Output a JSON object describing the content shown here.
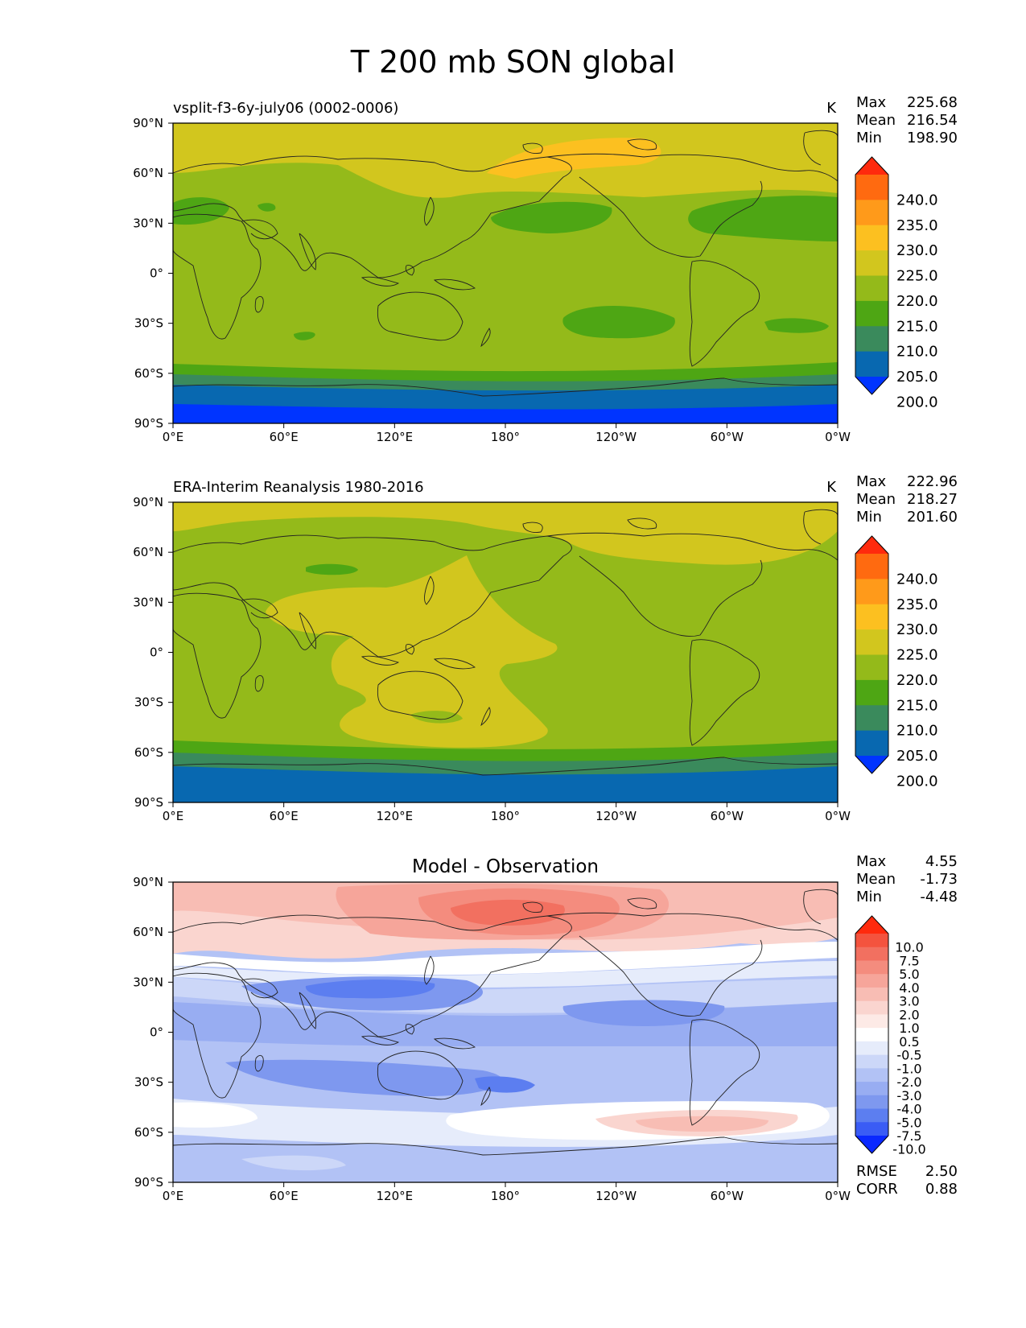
{
  "title": "T 200 mb SON global",
  "x_ticks": [
    "0°E",
    "60°E",
    "120°E",
    "180°",
    "120°W",
    "60°W",
    "0°W"
  ],
  "y_ticks": [
    "90°N",
    "60°N",
    "30°N",
    "0°",
    "30°S",
    "60°S",
    "90°S"
  ],
  "panels": [
    {
      "id": "model",
      "left_title": "vsplit-f3-6y-july06 (0002-0006)",
      "center_title": "",
      "units": "K",
      "stats": [
        {
          "label": "Max",
          "value": "225.68"
        },
        {
          "label": "Mean",
          "value": "216.54"
        },
        {
          "label": "Min",
          "value": "198.90"
        }
      ],
      "colorbar": {
        "labels": [
          "240.0",
          "235.0",
          "230.0",
          "225.0",
          "220.0",
          "215.0",
          "210.0",
          "205.0",
          "200.0"
        ],
        "colors": [
          "#ff2a0d",
          "#ff6a10",
          "#ff9a1a",
          "#fcc020",
          "#d2c61e",
          "#94ba1a",
          "#4ea614",
          "#3a8a5c",
          "#0868b0",
          "#0034ff"
        ]
      },
      "extra_stats": []
    },
    {
      "id": "obs",
      "left_title": "ERA-Interim Reanalysis 1980-2016",
      "center_title": "",
      "units": "K",
      "stats": [
        {
          "label": "Max",
          "value": "222.96"
        },
        {
          "label": "Mean",
          "value": "218.27"
        },
        {
          "label": "Min",
          "value": "201.60"
        }
      ],
      "colorbar": {
        "labels": [
          "240.0",
          "235.0",
          "230.0",
          "225.0",
          "220.0",
          "215.0",
          "210.0",
          "205.0",
          "200.0"
        ],
        "colors": [
          "#ff2a0d",
          "#ff6a10",
          "#ff9a1a",
          "#fcc020",
          "#d2c61e",
          "#94ba1a",
          "#4ea614",
          "#3a8a5c",
          "#0868b0",
          "#0034ff"
        ]
      },
      "extra_stats": []
    },
    {
      "id": "diff",
      "left_title": "",
      "center_title": "Model - Observation",
      "units": "",
      "stats": [
        {
          "label": "Max",
          "value": "4.55"
        },
        {
          "label": "Mean",
          "value": "-1.73"
        },
        {
          "label": "Min",
          "value": "-4.48"
        }
      ],
      "colorbar": {
        "labels": [
          "10.0",
          "7.5",
          "5.0",
          "4.0",
          "3.0",
          "2.0",
          "1.0",
          "0.5",
          "-0.5",
          "-1.0",
          "-2.0",
          "-3.0",
          "-4.0",
          "-5.0",
          "-7.5",
          "-10.0"
        ],
        "colors": [
          "#ff2a0d",
          "#f4533e",
          "#f27060",
          "#f48c7e",
          "#f6a59a",
          "#f8bdb4",
          "#fad5cf",
          "#fdeae6",
          "#ffffff",
          "#e6ecfb",
          "#ccd7f8",
          "#b2c2f5",
          "#98adf2",
          "#7e98ef",
          "#5c7ef0",
          "#3a5cf5",
          "#0a28ff"
        ]
      },
      "extra_stats": [
        {
          "label": "RMSE",
          "value": "2.50"
        },
        {
          "label": "CORR",
          "value": "0.88"
        }
      ]
    }
  ]
}
